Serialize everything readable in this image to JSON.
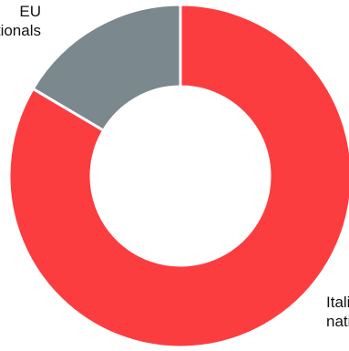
{
  "chart_data": {
    "type": "pie",
    "variant": "donut",
    "slices": [
      {
        "label_lines": [
          "Italian",
          "nationals"
        ],
        "value": 83.5,
        "color": "#fc3d40"
      },
      {
        "label_lines": [
          "EU",
          "nationals"
        ],
        "value": 16.5,
        "color": "#7b888d"
      }
    ],
    "start": "12 o'clock",
    "direction": "clockwise",
    "legend": "none"
  }
}
